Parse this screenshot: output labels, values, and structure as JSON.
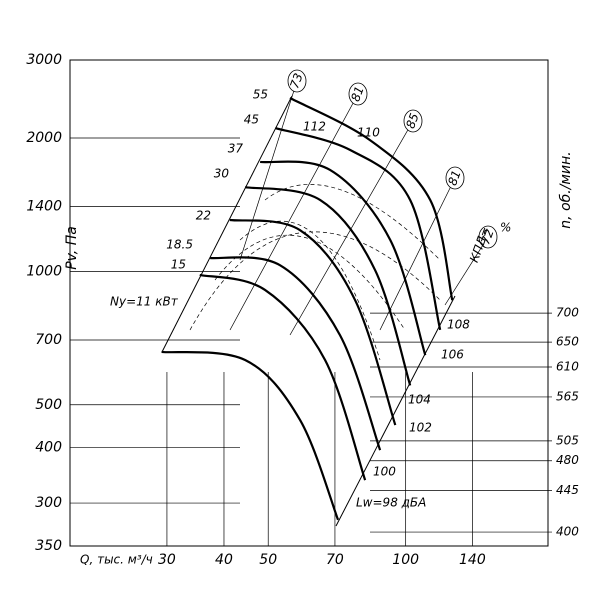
{
  "chart_data": {
    "type": "line",
    "ylabel": "Pv, Па",
    "xlabel": "Q, тыс. м³/ч",
    "y2label": "n, об./мин.",
    "xscale": "log",
    "xlim": [
      18.4,
      205
    ],
    "xticks": [
      30,
      40,
      50,
      70,
      100,
      140
    ],
    "yscale": "log",
    "ylim": [
      240,
      3000
    ],
    "yticks": [
      3000,
      2000,
      1400,
      1000,
      700,
      500,
      400,
      300
    ],
    "y_bottom_label": "350",
    "y2scale": "log",
    "y2lim": [
      386,
      1337
    ],
    "y2ticks": [
      700,
      650,
      610,
      565,
      505,
      480,
      445,
      400
    ],
    "series": [
      {
        "name": "55",
        "color": "#000000",
        "x": [
          55.8,
          83.6,
          113.2,
          126.5
        ],
        "values": [
          2462,
          1977,
          1449,
          861
        ]
      },
      {
        "name": "45",
        "color": "#000000",
        "x": [
          51.8,
          75.6,
          102.3,
          119.0
        ],
        "values": [
          2106,
          1879,
          1449,
          738
        ]
      },
      {
        "name": "37",
        "color": "#000000",
        "x": [
          48.0,
          68.3,
          92.5,
          110.4
        ],
        "values": [
          1766,
          1694,
          1178,
          647
        ]
      },
      {
        "name": "30",
        "color": "#000000",
        "x": [
          44.5,
          65.0,
          85.7,
          102.3
        ],
        "values": [
          1549,
          1449,
          1007,
          553
        ]
      },
      {
        "name": "22",
        "color": "#000000",
        "x": [
          41.2,
          58.7,
          77.5,
          94.9
        ],
        "values": [
          1306,
          1239,
          861,
          450
        ]
      },
      {
        "name": "18.5",
        "color": "#000000",
        "x": [
          37.3,
          53.1,
          71.8,
          87.9
        ],
        "values": [
          1072,
          1032,
          718,
          395
        ]
      },
      {
        "name": "15",
        "color": "#000000",
        "x": [
          35.4,
          49.2,
          66.6,
          81.5
        ],
        "values": [
          982,
          908,
          631,
          338
        ]
      },
      {
        "name": "Ny=11 кВт",
        "color": "#000000",
        "x": [
          29.2,
          44.5,
          58.7,
          71.1
        ],
        "values": [
          658,
          631,
          462,
          275
        ]
      }
    ],
    "noise_labels": [
      "112",
      "110",
      "108",
      "106",
      "104",
      "102",
      "100",
      "Lw=98 дБА"
    ],
    "efficiency_labels": [
      "73",
      "81",
      "85",
      "81",
      "72"
    ],
    "efficiency_prefix": "КПД=",
    "efficiency_unit": "%"
  }
}
